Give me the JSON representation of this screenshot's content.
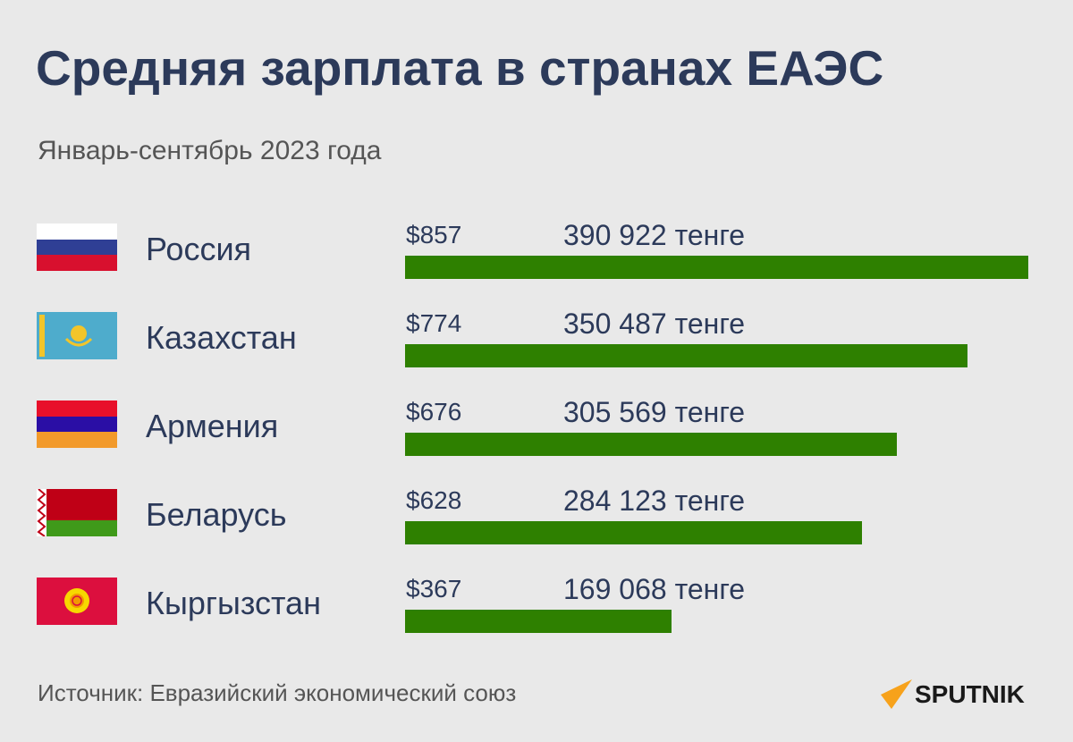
{
  "chart_data": {
    "type": "bar",
    "orientation": "horizontal",
    "title": "Средняя зарплата в странах ЕАЭС",
    "subtitle": "Январь-сентябрь 2023 года",
    "categories": [
      "Россия",
      "Казахстан",
      "Армения",
      "Беларусь",
      "Кыргызстан"
    ],
    "values": [
      857,
      774,
      676,
      628,
      367
    ],
    "usd_labels": [
      "$857",
      "$774",
      "$676",
      "$628",
      "$367"
    ],
    "kzt_labels": [
      "390 922 тенге",
      "350 487 тенге",
      "305 569 тенге",
      "284 123 тенге",
      "169 068 тенге"
    ],
    "xlim": [
      0,
      857
    ],
    "bar_color": "#2e8000",
    "source": "Источник: Евразийский экономический союз"
  },
  "logo": "SPUTNIK"
}
